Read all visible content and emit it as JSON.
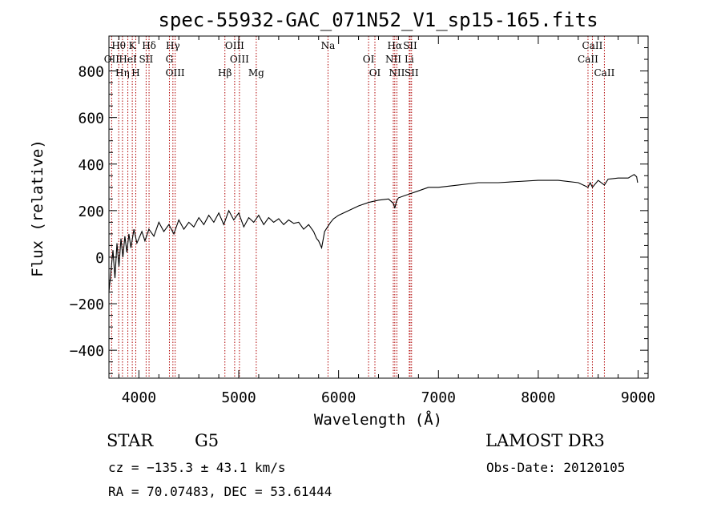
{
  "chart_data": {
    "type": "line",
    "title": "spec-55932-GAC_071N52_V1_sp15-165.fits",
    "xlabel": "Wavelength (Å)",
    "ylabel": "Flux (relative)",
    "xlim": [
      3700,
      9100
    ],
    "ylim": [
      -520,
      950
    ],
    "xticks": [
      4000,
      5000,
      6000,
      7000,
      8000,
      9000
    ],
    "xtick_labels": [
      "4000",
      "5000",
      "6000",
      "7000",
      "8000",
      "9000"
    ],
    "yticks": [
      -400,
      -200,
      0,
      200,
      400,
      600,
      800
    ],
    "ytick_labels": [
      "−400",
      "−200",
      "0",
      "200",
      "400",
      "600",
      "800"
    ],
    "grid": false,
    "series": [
      {
        "name": "flux",
        "x": [
          3700,
          3720,
          3740,
          3760,
          3780,
          3800,
          3820,
          3840,
          3860,
          3880,
          3900,
          3920,
          3950,
          3980,
          4000,
          4030,
          4060,
          4100,
          4150,
          4200,
          4250,
          4300,
          4350,
          4400,
          4450,
          4500,
          4550,
          4600,
          4650,
          4700,
          4750,
          4800,
          4850,
          4900,
          4950,
          5000,
          5050,
          5100,
          5150,
          5200,
          5250,
          5300,
          5350,
          5400,
          5450,
          5500,
          5550,
          5600,
          5650,
          5700,
          5750,
          5780,
          5800,
          5830,
          5860,
          5890,
          5920,
          5950,
          6000,
          6100,
          6200,
          6300,
          6400,
          6500,
          6550,
          6563,
          6580,
          6600,
          6700,
          6800,
          6900,
          7000,
          7200,
          7400,
          7600,
          7800,
          8000,
          8200,
          8400,
          8498,
          8520,
          8542,
          8600,
          8662,
          8700,
          8800,
          8900,
          8960,
          8985,
          8995
        ],
        "y": [
          -150,
          -60,
          30,
          -90,
          60,
          -40,
          80,
          0,
          90,
          20,
          100,
          40,
          120,
          60,
          80,
          110,
          70,
          120,
          90,
          150,
          110,
          140,
          100,
          160,
          120,
          150,
          130,
          170,
          140,
          180,
          150,
          190,
          140,
          200,
          160,
          190,
          130,
          170,
          150,
          180,
          140,
          170,
          150,
          165,
          140,
          160,
          145,
          150,
          120,
          140,
          110,
          80,
          70,
          40,
          110,
          130,
          150,
          165,
          180,
          200,
          220,
          235,
          245,
          250,
          230,
          210,
          240,
          255,
          270,
          285,
          300,
          300,
          310,
          320,
          320,
          325,
          330,
          330,
          320,
          300,
          320,
          300,
          330,
          310,
          335,
          340,
          340,
          355,
          345,
          320
        ]
      }
    ],
    "line_labels": [
      {
        "ion": "Hθ",
        "wavelength": 3797.9
      },
      {
        "ion": "OII",
        "wavelength": 3727.1
      },
      {
        "ion": "Hη",
        "wavelength": 3835.4
      },
      {
        "ion": "K",
        "wavelength": 3933.7
      },
      {
        "ion": "HeI",
        "wavelength": 3889.0
      },
      {
        "ion": "H",
        "wavelength": 3968.5
      },
      {
        "ion": "Hδ",
        "wavelength": 4101.7
      },
      {
        "ion": "SII",
        "wavelength": 4072.3
      },
      {
        "ion": "OIII",
        "wavelength": 4363.2
      },
      {
        "ion": "Hγ",
        "wavelength": 4340.5
      },
      {
        "ion": "G",
        "wavelength": 4305.6
      },
      {
        "ion": "Hβ",
        "wavelength": 4861.3
      },
      {
        "ion": "OIII",
        "wavelength": 4958.9
      },
      {
        "ion": "OIII",
        "wavelength": 5006.8
      },
      {
        "ion": "Mg",
        "wavelength": 5175.3
      },
      {
        "ion": "Na",
        "wavelength": 5894.0
      },
      {
        "ion": "OI",
        "wavelength": 6300.3
      },
      {
        "ion": "OI",
        "wavelength": 6363.8
      },
      {
        "ion": "Hα",
        "wavelength": 6562.8
      },
      {
        "ion": "NII",
        "wavelength": 6548.1
      },
      {
        "ion": "NII",
        "wavelength": 6583.5
      },
      {
        "ion": "SII",
        "wavelength": 6716.4
      },
      {
        "ion": "Li",
        "wavelength": 6707.8
      },
      {
        "ion": "SII",
        "wavelength": 6730.8
      },
      {
        "ion": "CaII",
        "wavelength": 8542.1
      },
      {
        "ion": "CaII",
        "wavelength": 8498.0
      },
      {
        "ion": "CaII",
        "wavelength": 8662.1
      }
    ]
  },
  "info": {
    "class": "STAR",
    "subclass": "G5",
    "survey": "LAMOST DR3",
    "cz": "cz = −135.3 ± 43.1 km/s",
    "obs_date": "Obs-Date: 20120105",
    "coords": "RA =  70.07483, DEC =  53.61444"
  },
  "colors": {
    "line_marker": "#b00000",
    "spectrum": "#000000"
  }
}
